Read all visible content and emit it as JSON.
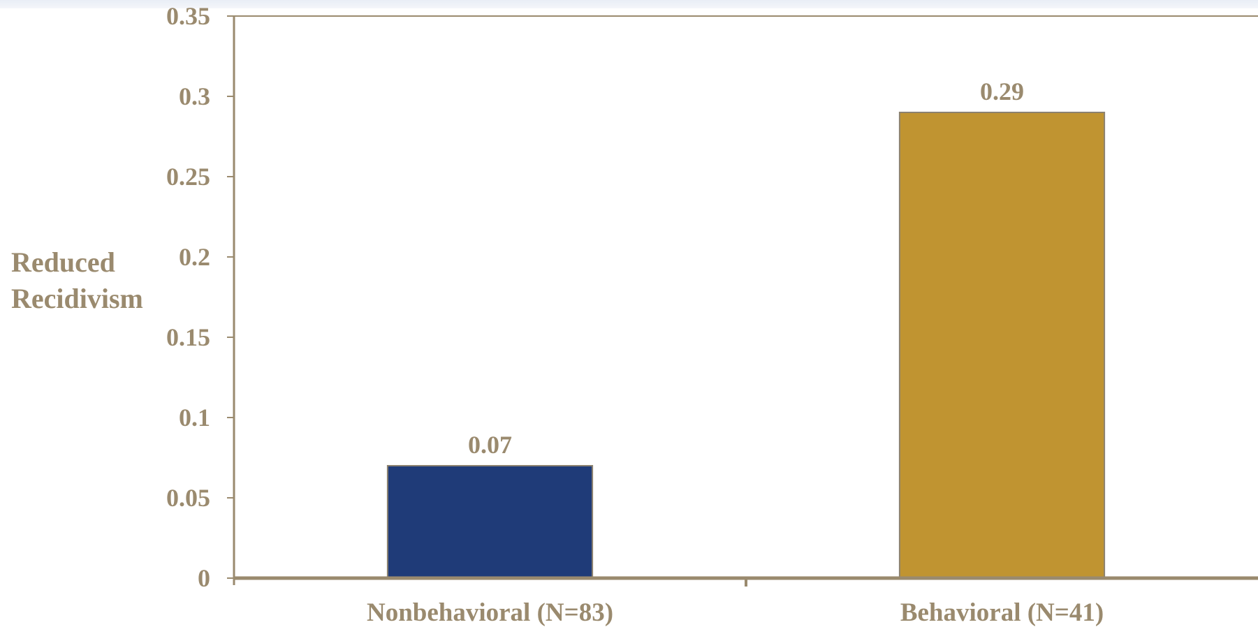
{
  "chart_data": {
    "type": "bar",
    "categories": [
      "Nonbehavioral (N=83)",
      "Behavioral (N=41)"
    ],
    "values": [
      0.07,
      0.29
    ],
    "value_labels": [
      "0.07",
      "0.29"
    ],
    "ylabel_lines": [
      "Reduced",
      "Recidivism"
    ],
    "ylim": [
      0,
      0.35
    ],
    "yticks": [
      0,
      0.05,
      0.1,
      0.15,
      0.2,
      0.25,
      0.3,
      0.35
    ],
    "ytick_labels": [
      "0",
      "0.05",
      "0.1",
      "0.15",
      "0.2",
      "0.25",
      "0.3",
      "0.35"
    ],
    "grid": false,
    "legend": "none",
    "colors": {
      "bars": [
        "#1f3b78",
        "#c09431"
      ],
      "bar_border": "#8c8270",
      "axis": "#9a8a6e",
      "text": "#9a8a6e"
    }
  }
}
